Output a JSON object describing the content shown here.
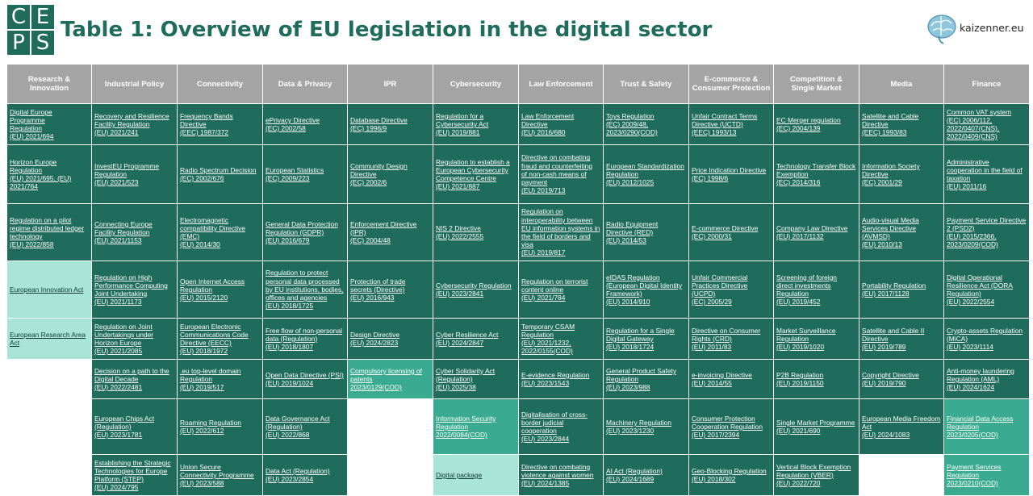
{
  "header": {
    "logo_letters": [
      "C",
      "E",
      "P",
      "S"
    ],
    "title": "Table 1: Overview of EU legislation in the digital sector",
    "brand": "kaizenner.eu",
    "brand_icon": "brain-icon"
  },
  "columns": [
    "Research & Innovation",
    "Industrial Policy",
    "Connectivity",
    "Data & Privacy",
    "IPR",
    "Cybersecurity",
    "Law Enforcement",
    "Trust & Safety",
    "E-commerce &\nConsumer Protection",
    "Competition &\nSingle Market",
    "Media",
    "Finance"
  ],
  "colors": {
    "dark": "#1f6b5c",
    "light": "#a9e5d6",
    "mid": "#3aaa91",
    "header": "#a4a4a4",
    "title": "#1f6b5c"
  },
  "rows": [
    [
      {
        "text": "Digital Europe Programme\nRegulation\n(EU) 2021/694"
      },
      {
        "text": "Recovery and Resilience\nFacility Regulation\n(EU) 2021/241"
      },
      {
        "text": "Frequency Bands\nDirective\n(EEC) 1987/372"
      },
      {
        "text": "ePrivacy Directive\n(EC) 2002/58"
      },
      {
        "text": "Database Directive\n(EC) 1996/9"
      },
      {
        "text": "Regulation for a\nCybersecurity Act\n(EU) 2019/881"
      },
      {
        "text": "Law Enforcement\nDirective\n(EU) 2016/680"
      },
      {
        "text": "Toys Regulation\n(EC) 2009/48,\n2023/0290(COD)"
      },
      {
        "text": "Unfair Contract Terms\nDirective (UCTD)\n(EEC) 1993/13"
      },
      {
        "text": "EC Merger regulation\n(EC) 2004/139"
      },
      {
        "text": "Satellite and Cable\nDirective\n(EEC) 1993/83"
      },
      {
        "text": "Common VAT system\n(EC) 2006/112,\n2022/0407(CNS),\n2022/0409(CNS)"
      }
    ],
    [
      {
        "text": "Horizon Europe\nRegulation\n(EU) 2021/695, (EU)\n2021/764"
      },
      {
        "text": "InvestEU Programme\nRegulation\n(EU) 2021/523"
      },
      {
        "text": "Radio Spectrum Decision\n(EC) 2002/676"
      },
      {
        "text": "European Statistics\n(EC) 2009/223"
      },
      {
        "text": "Community Design\nDirective\n(EC) 2002/6"
      },
      {
        "text": "Regulation to establish a\nEuropean Cybersecurity\nCompetence Centre\n(EU) 2021/887"
      },
      {
        "text": "Directive on combating\nfraud and counterfeiting\nof non-cash means of\npayment\n(EU) 2019/713"
      },
      {
        "text": "European Standardization\nRegulation\n(EU) 2012/1025"
      },
      {
        "text": "Price Indication Directive\n(EC) 1998/6"
      },
      {
        "text": "Technology Transfer Block\nExemption\n(EC) 2014/316"
      },
      {
        "text": "Information Society\nDirective\n(EC) 2001/29"
      },
      {
        "text": "Administrative\ncooperation in the field of\ntaxation\n(EU) 2011/16"
      }
    ],
    [
      {
        "text": "Regulation on a pilot\nregime distributed ledger\ntechnology\n(EU) 2022/858"
      },
      {
        "text": "Connecting Europe\nFacility Regulation\n(EU) 2021/1153"
      },
      {
        "text": "Electromagnetic\ncompatibility Directive\n(EMC)\n(EU) 2014/30"
      },
      {
        "text": "General Data Protection\nRegulation (GDPR)\n(EU) 2016/679"
      },
      {
        "text": "Enforcement Directive\n(IPR)\n(EC) 2004/48"
      },
      {
        "text": "NIS 2 Directive\n(EU) 2022/2555"
      },
      {
        "text": "Regulation on\ninteroperability between\nEU information systems in\nthe field of borders and\nvisa\n(EU) 2019/817"
      },
      {
        "text": "Radio Equipment\nDirective (RED)\n(EU) 2014/53"
      },
      {
        "text": "E-commerce Directive\n(EC) 2000/31"
      },
      {
        "text": "Company Law Directive\n(EU) 2017/1132"
      },
      {
        "text": "Audio-visual Media\nServices Directive\n(AVMSD)\n(EU) 2010/13"
      },
      {
        "text": "Payment Service Directive\n2 (PSD2)\n(EU) 2015/2366,\n2023/0209(COD)"
      }
    ],
    [
      {
        "text": "European Innovation Act",
        "style": "light"
      },
      {
        "text": "Regulation on High\nPerformance Computing\nJoint Undertaking\n(EU) 2021/1173"
      },
      {
        "text": "Open Internet Access\nRegulation\n(EU) 2015/2120"
      },
      {
        "text": "Regulation to protect\npersonal data processed\nby EU institutions, bodies,\noffices and agencies\n(EU) 2018/1725"
      },
      {
        "text": "Protection of trade\nsecrets (Directive)\n(EU) 2016/943"
      },
      {
        "text": "Cybersecurity Regulation\n(EU) 2023/2841"
      },
      {
        "text": "Regulation on terrorist\ncontent online\n(EU) 2021/784"
      },
      {
        "text": "eIDAS Regulation\n(European Digital Identity\nFramework)\n(EU) 2014/910"
      },
      {
        "text": "Unfair Commercial\nPractices Directive (UCPD)\n(EC) 2005/29"
      },
      {
        "text": "Screening of foreign\ndirect investments\nRegulation\n(EU) 2019/452"
      },
      {
        "text": "Portability Regulation\n(EU) 2017/1128"
      },
      {
        "text": "Digital Operational\nResilience Act (DORA\nRegulation)\n(EU) 2022/2554"
      }
    ],
    [
      {
        "text": "European Research Area\nAct",
        "style": "light"
      },
      {
        "text": "Regulation on Joint\nUndertakings under\nHorizon Europe\n(EU) 2021/2085"
      },
      {
        "text": "European Electronic\nCommunications Code\nDirective (EECC)\n(EU) 2018/1972"
      },
      {
        "text": "Free flow of non-personal\ndata (Regulation)\n(EU) 2018/1807"
      },
      {
        "text": "Design Directive\n(EU) 2024/2823"
      },
      {
        "text": "Cyber Resilience Act\n(EU) 2024/2847"
      },
      {
        "text": "Temporary CSAM\nRegulation\n(EU) 2021/1232,\n2022/0155(COD)"
      },
      {
        "text": "Regulation for a Single\nDigital Gateway\n(EU) 2018/1724"
      },
      {
        "text": "Directive on Consumer\nRights (CRD)\n(EU) 2011/83"
      },
      {
        "text": "Market Surveillance\nRegulation\n(EU) 2019/1020"
      },
      {
        "text": "Satellite and Cable II\nDirective\n(EU) 2019/789"
      },
      {
        "text": "Crypto-assets Regulation\n(MiCA)\n(EU) 2023/1114"
      }
    ],
    [
      {
        "text": "",
        "style": "empty"
      },
      {
        "text": "Decision on a path to the\nDigital Decade\n(EU) 2022/2481"
      },
      {
        "text": ".eu top-level domain\nRegulation\n(EU) 2019/517"
      },
      {
        "text": "Open Data Directive (PSI)\n(EU) 2019/1024"
      },
      {
        "text": "Compulsory licensing of\npatents\n2023/0129(COD)",
        "style": "mid"
      },
      {
        "text": "Cyber Solidarity Act\n(Regulation)\n(EU) 2025/38"
      },
      {
        "text": "E-evidence Regulation\n(EU) 2023/1543"
      },
      {
        "text": "General Product Safety\nRegulation\n(EU) 2023/988"
      },
      {
        "text": "e-invoicing Directive\n(EU) 2014/55"
      },
      {
        "text": "P2B Regulation\n(EU) 2019/1150"
      },
      {
        "text": "Copyright Directive\n(EU) 2019/790"
      },
      {
        "text": "Anti-money laundering\nRegulation (AML)\n(EU) 2024/1624"
      }
    ],
    [
      {
        "text": "",
        "style": "empty"
      },
      {
        "text": "European Chips Act\n(Regulation)\n(EU) 2023/1781"
      },
      {
        "text": "Roaming Regulation\n(EU) 2022/612"
      },
      {
        "text": "Data Governance Act\n(Regulation)\n(EU) 2022/868"
      },
      {
        "text": "",
        "style": "empty"
      },
      {
        "text": "Information Security\nRegulation\n2022/0084(COD)",
        "style": "mid"
      },
      {
        "text": "Digitalisation of cross-\nborder judicial\ncooperation\n(EU) 2023/2844"
      },
      {
        "text": "Machinery Regulation\n(EU) 2023/1230"
      },
      {
        "text": "Consumer Protection\nCooperation Regulation\n(EU) 2017/2394"
      },
      {
        "text": "Single Market Programme\n(EU) 2021/690"
      },
      {
        "text": "European Media Freedom\nAct\n(EU) 2024/1083"
      },
      {
        "text": "Financial Data Access\nRegulation\n2023/0205(COD)",
        "style": "mid"
      }
    ],
    [
      {
        "text": "",
        "style": "empty"
      },
      {
        "text": "Establishing the Strategic\nTechnologies for Europe\nPlatform (STEP)\n(EU) 2024/795"
      },
      {
        "text": "Union Secure\nConnectivity Programme\n(EU) 2023/588"
      },
      {
        "text": "Data Act (Regulation)\n(EU) 2023/2854"
      },
      {
        "text": "",
        "style": "empty"
      },
      {
        "text": "Digital package",
        "style": "light"
      },
      {
        "text": "Directive on combating\nviolence against women\n(EU) 2024/1385"
      },
      {
        "text": "AI Act (Regulation)\n(EU) 2024/1689"
      },
      {
        "text": "Geo-Blocking Regulation\n(EU) 2018/302"
      },
      {
        "text": "Vertical Block Exemption\nRegulation (VBER)\n(EU) 2022/720"
      },
      {
        "text": "",
        "style": "empty"
      },
      {
        "text": "Payment Services\nRegulation\n2023/0210(COD)",
        "style": "mid"
      }
    ]
  ]
}
